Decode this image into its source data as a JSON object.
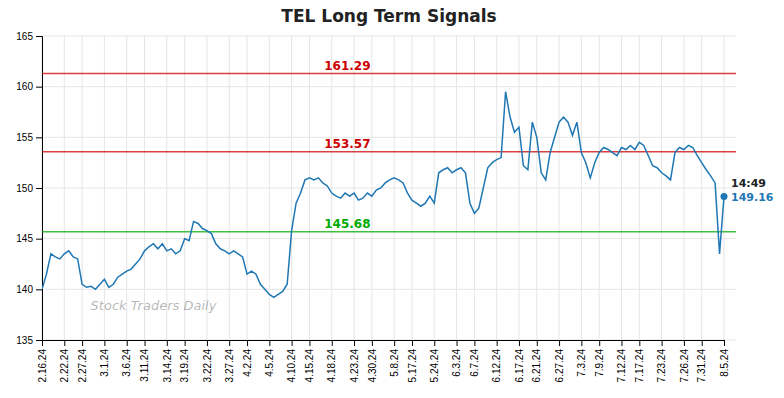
{
  "chart_data": {
    "type": "line",
    "title": "TEL Long Term Signals",
    "categories": [
      "2.16.24",
      null,
      null,
      null,
      null,
      "2.22.24",
      null,
      null,
      null,
      "2.27.24",
      null,
      null,
      null,
      null,
      "3.1.24",
      null,
      null,
      null,
      null,
      "3.6.24",
      null,
      null,
      null,
      "3.11.24",
      null,
      null,
      null,
      null,
      "3.14.24",
      null,
      null,
      null,
      "3.19.24",
      null,
      null,
      null,
      null,
      "3.22.24",
      null,
      null,
      null,
      null,
      "3.27.24",
      null,
      null,
      null,
      "4.2.24",
      null,
      null,
      null,
      null,
      "4.5.24",
      null,
      null,
      null,
      null,
      "4.10.24",
      null,
      null,
      null,
      "4.15.24",
      null,
      null,
      null,
      null,
      "4.18.24",
      null,
      null,
      null,
      null,
      "4.23.24",
      null,
      null,
      null,
      "4.30.24",
      null,
      null,
      null,
      null,
      "5.8.24",
      null,
      null,
      null,
      "5.17.24",
      null,
      null,
      null,
      null,
      "5.24.24",
      null,
      null,
      null,
      null,
      "6.3.24",
      null,
      null,
      null,
      "6.7.24",
      null,
      null,
      null,
      null,
      "6.12.24",
      null,
      null,
      null,
      null,
      "6.17.24",
      null,
      null,
      null,
      "6.21.24",
      null,
      null,
      null,
      null,
      "6.27.24",
      null,
      null,
      null,
      null,
      "7.3.24",
      null,
      null,
      null,
      "7.9.24",
      null,
      null,
      null,
      null,
      "7.12.24",
      null,
      null,
      null,
      "7.17.24",
      null,
      null,
      null,
      null,
      "7.23.24",
      null,
      null,
      null,
      null,
      "7.26.24",
      null,
      null,
      null,
      "7.31.24",
      null,
      null,
      null,
      null,
      "8.5.24"
    ],
    "values": [
      140.0,
      141.5,
      143.5,
      143.2,
      143.0,
      143.5,
      143.8,
      143.2,
      143.0,
      140.5,
      140.2,
      140.3,
      140.0,
      140.5,
      141.0,
      140.2,
      140.5,
      141.2,
      141.5,
      141.8,
      142.0,
      142.5,
      143.0,
      143.8,
      144.2,
      144.5,
      144.0,
      144.5,
      143.8,
      144.0,
      143.5,
      143.8,
      145.0,
      144.8,
      146.7,
      146.5,
      146.0,
      145.8,
      145.5,
      144.5,
      144.0,
      143.8,
      143.5,
      143.8,
      143.5,
      143.2,
      141.5,
      141.8,
      141.5,
      140.5,
      140.0,
      139.5,
      139.2,
      139.5,
      139.8,
      140.5,
      145.8,
      148.5,
      149.5,
      150.8,
      151.0,
      150.8,
      151.0,
      150.5,
      150.2,
      149.5,
      149.2,
      149.0,
      149.5,
      149.2,
      149.5,
      148.8,
      149.0,
      149.5,
      149.2,
      149.8,
      150.0,
      150.5,
      150.8,
      151.0,
      150.8,
      150.5,
      149.5,
      148.8,
      148.5,
      148.2,
      148.5,
      149.2,
      148.5,
      151.5,
      151.8,
      152.0,
      151.5,
      151.8,
      152.0,
      151.5,
      148.5,
      147.5,
      148.0,
      150.0,
      152.0,
      152.5,
      152.8,
      153.0,
      159.5,
      157.0,
      155.5,
      156.0,
      152.2,
      151.8,
      156.5,
      155.0,
      151.5,
      150.8,
      153.5,
      155.0,
      156.5,
      157.0,
      156.5,
      155.2,
      156.5,
      153.5,
      152.5,
      151.0,
      152.5,
      153.5,
      154.0,
      153.8,
      153.5,
      153.2,
      154.0,
      153.8,
      154.2,
      153.8,
      154.5,
      154.2,
      153.2,
      152.2,
      152.0,
      151.5,
      151.2,
      150.8,
      153.5,
      154.0,
      153.8,
      154.2,
      154.0,
      153.2,
      152.5,
      151.8,
      151.2,
      150.5,
      143.5,
      149.16
    ],
    "reference_lines": [
      {
        "value": 161.29,
        "label": "161.29",
        "color": "#cc0000"
      },
      {
        "value": 153.57,
        "label": "153.57",
        "color": "#cc0000"
      },
      {
        "value": 145.68,
        "label": "145.68",
        "color": "#00aa00"
      }
    ],
    "annotations": [
      "14:49",
      "149.16"
    ],
    "watermark": "Stock Traders Daily",
    "ylim": [
      135,
      165
    ],
    "yticks": [
      135,
      140,
      145,
      150,
      155,
      160,
      165
    ],
    "grid": true
  }
}
